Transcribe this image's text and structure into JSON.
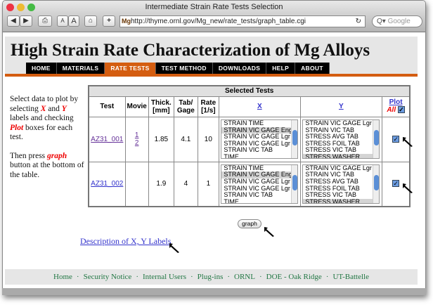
{
  "window": {
    "title": "Intermediate Strain Rate Tests Selection",
    "url": "http://thyme.ornl.gov/Mg_new/rate_tests/graph_table.cgi",
    "url_prefix": "Mg",
    "search_placeholder": "Google",
    "font_small": "A",
    "font_large": "A",
    "add": "+"
  },
  "header": {
    "title": "High Strain Rate Characterization of Mg Alloys",
    "nav": [
      "HOME",
      "MATERIALS",
      "RATE TESTS",
      "TEST METHOD",
      "DOWNLOADS",
      "HELP",
      "ABOUT"
    ],
    "active": "RATE TESTS",
    "accent": "#d45d10"
  },
  "instructions": {
    "p1a": "Select data to plot by selecting ",
    "x": "X",
    "and": " and ",
    "y": "Y",
    "p1b": " labels and checking ",
    "plot": "Plot",
    "p1c": " boxes for each test.",
    "p2a": "Then press ",
    "graph": "graph",
    "p2b": " button at the bottom of the table."
  },
  "table": {
    "caption": "Selected Tests",
    "headers": {
      "test": "Test",
      "movie": "Movie",
      "thick": "Thick. [mm]",
      "tab": "Tab/ Gage",
      "rate": "Rate [1/s]",
      "x": "X",
      "y": "Y",
      "plot": "Plot",
      "all": "All"
    },
    "rows": [
      {
        "test": "AZ31_001",
        "movies": [
          "1",
          "2"
        ],
        "thick": "1.85",
        "tab": "4.1",
        "rate": "10",
        "x_options": [
          "STRAIN TIME",
          "STRAIN VIC GAGE Eng",
          "STRAIN VIC GAGE Lgr",
          "STRAIN VIC GAGE Lgr neck",
          "STRAIN VIC TAB",
          "TIME"
        ],
        "x_selected": "STRAIN VIC GAGE Eng",
        "y_options": [
          "STRAIN VIC GAGE Lgr neck",
          "STRAIN VIC TAB",
          "STRESS AVG TAB",
          "STRESS FOIL TAB",
          "STRESS VIC TAB",
          "STRESS WASHER"
        ],
        "y_selected": "STRESS WASHER",
        "plot": true
      },
      {
        "test": "AZ31_002",
        "movies": [],
        "thick": "1.9",
        "tab": "4",
        "rate": "1",
        "x_options": [
          "STRAIN TIME",
          "STRAIN VIC GAGE Eng",
          "STRAIN VIC GAGE Lgr",
          "STRAIN VIC GAGE Lgr neck",
          "STRAIN VIC TAB",
          "TIME"
        ],
        "x_selected": "STRAIN VIC GAGE Eng",
        "y_options": [
          "STRAIN VIC GAGE Lgr neck",
          "STRAIN VIC TAB",
          "STRESS AVG TAB",
          "STRESS FOIL TAB",
          "STRESS VIC TAB",
          "STRESS WASHER"
        ],
        "y_selected": "STRESS WASHER",
        "plot": true
      }
    ]
  },
  "graph_button": "graph",
  "description_link": "Description of X, Y Labels",
  "footer": [
    "Home",
    "Security Notice",
    "Internal Users",
    "Plug-ins",
    "ORNL",
    "DOE - Oak Ridge",
    "UT-Battelle"
  ]
}
